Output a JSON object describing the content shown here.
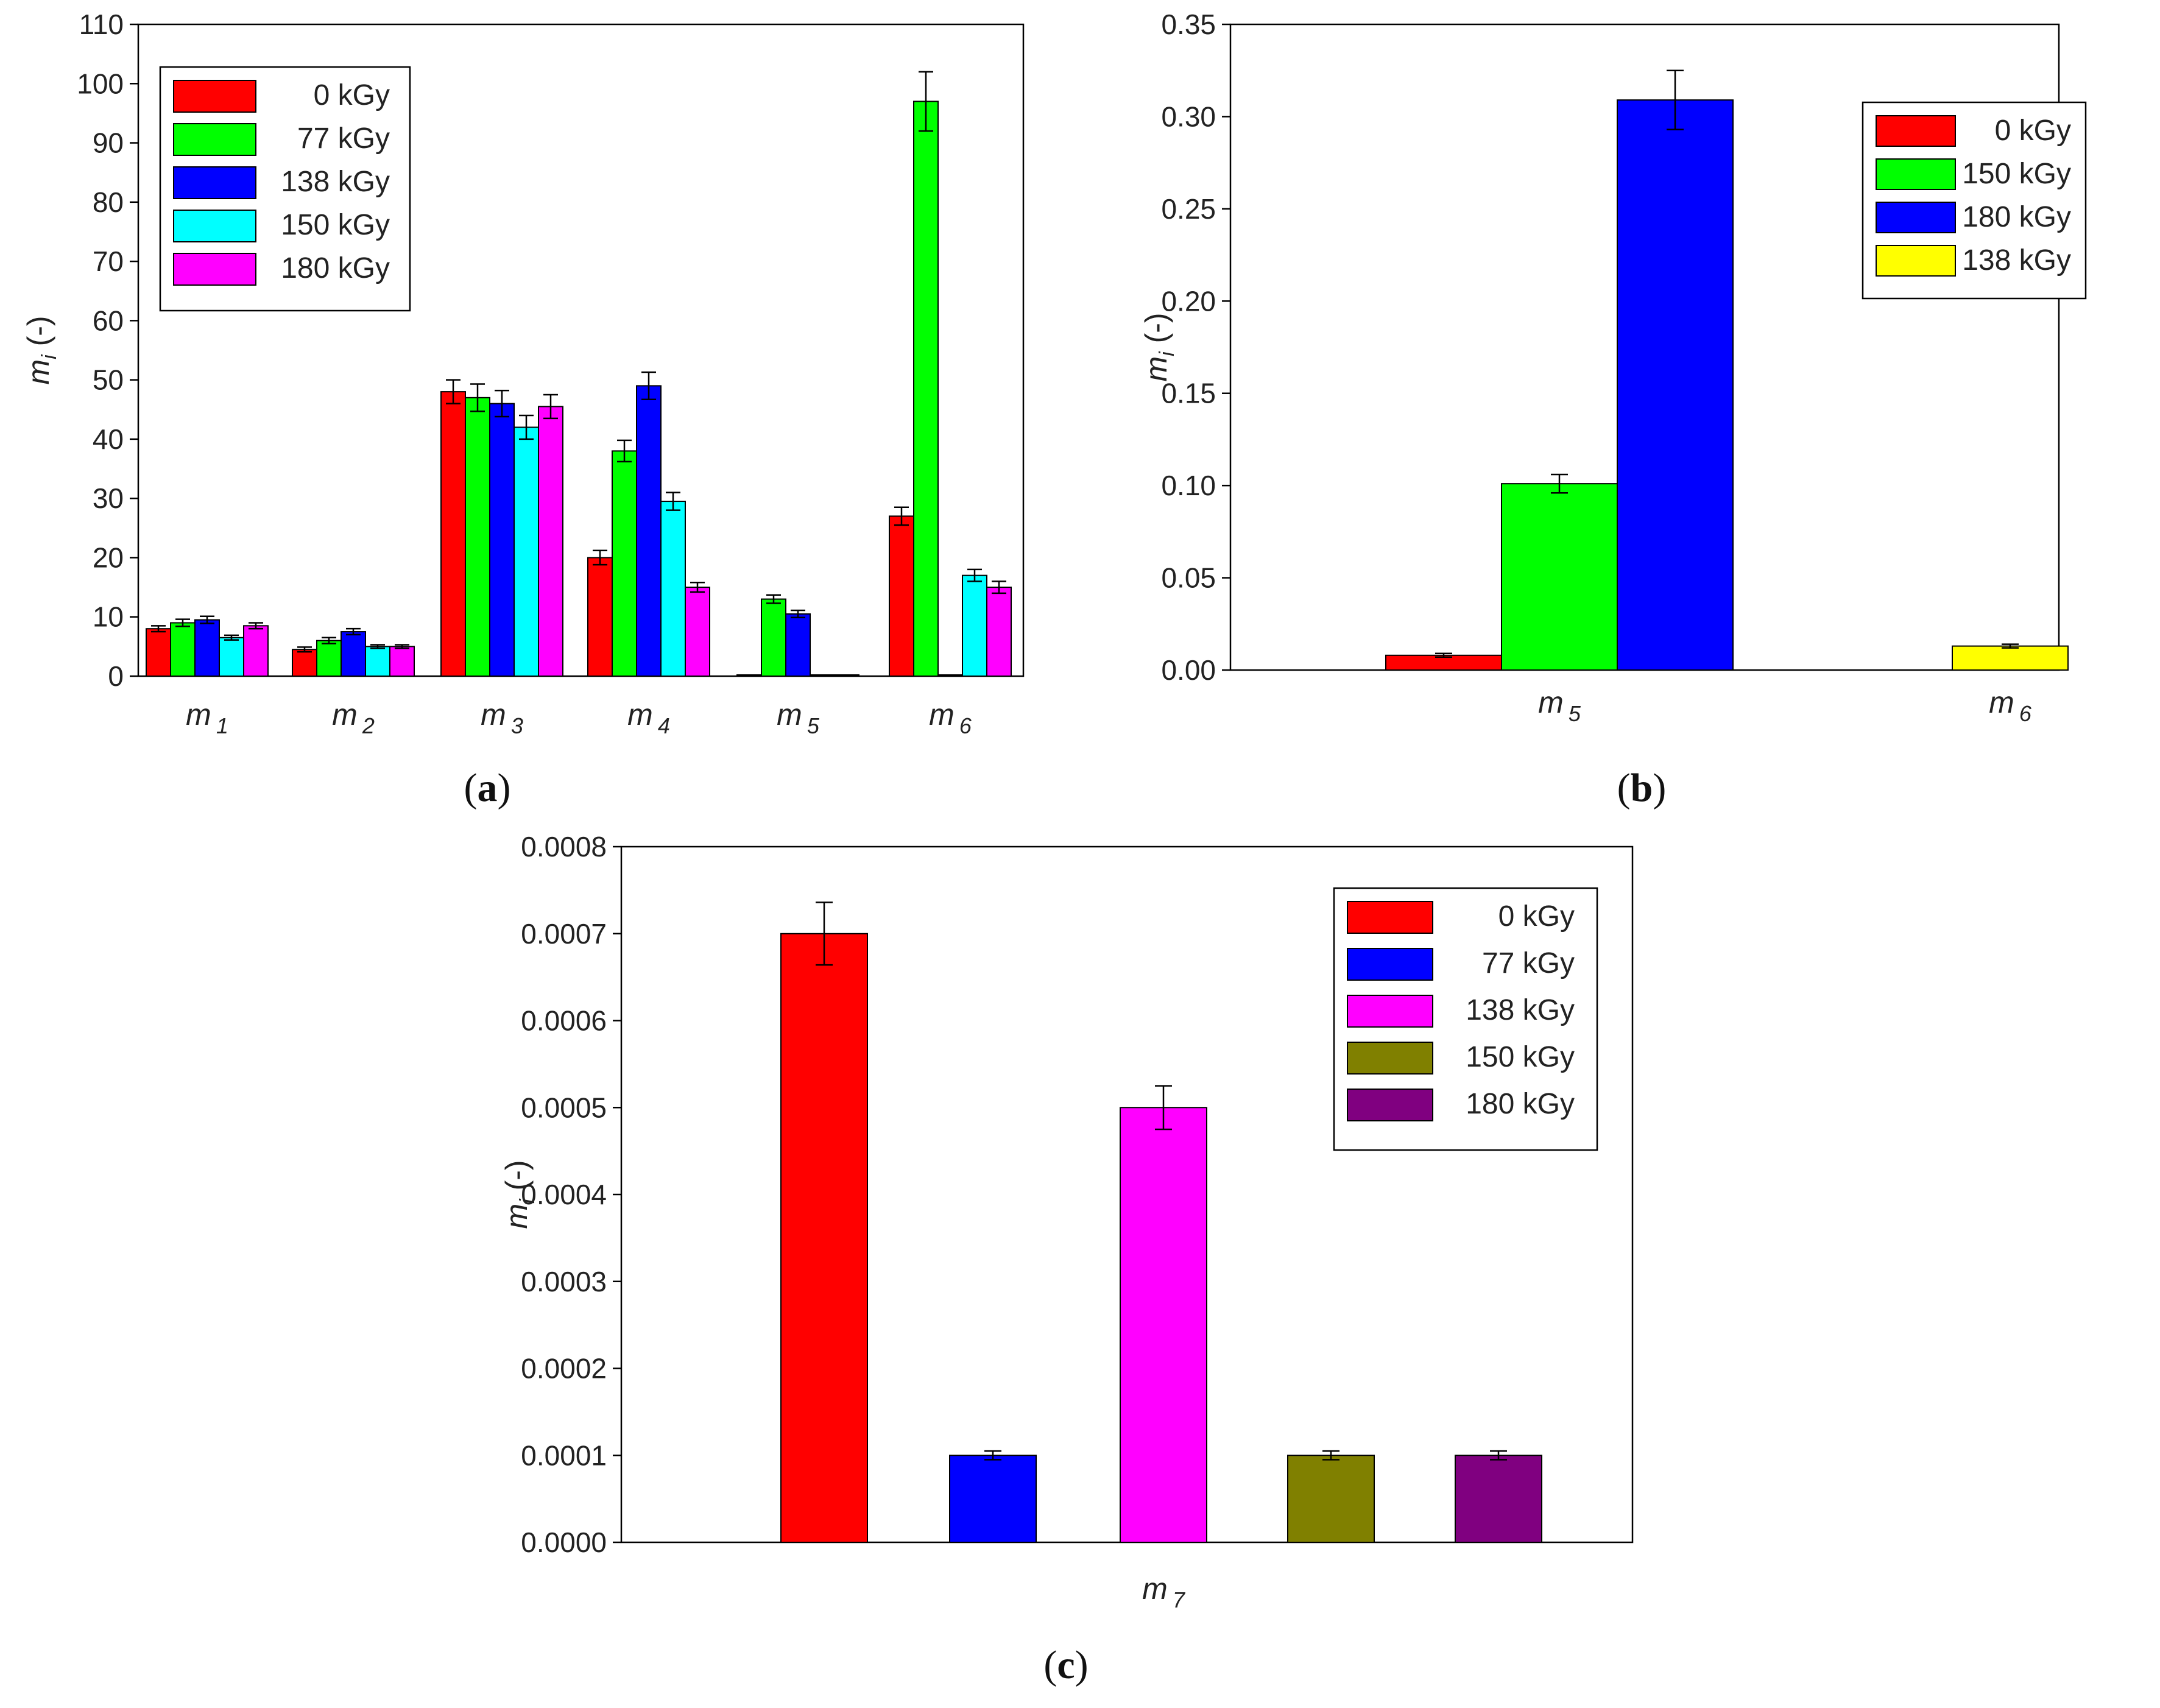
{
  "chart_data": [
    {
      "id": "a",
      "type": "bar",
      "panel_label": "(a)",
      "ylabel": "m_i (-)",
      "ylim": [
        0,
        110
      ],
      "yticks": [
        "0",
        "10",
        "20",
        "30",
        "40",
        "50",
        "60",
        "70",
        "80",
        "90",
        "100",
        "110"
      ],
      "categories": [
        {
          "main": "m",
          "sub": "1"
        },
        {
          "main": "m",
          "sub": "2"
        },
        {
          "main": "m",
          "sub": "3"
        },
        {
          "main": "m",
          "sub": "4"
        },
        {
          "main": "m",
          "sub": "5"
        },
        {
          "main": "m",
          "sub": "6"
        }
      ],
      "legend_position": "top-left",
      "series": [
        {
          "name": "0 kGy",
          "color": "#ff0000",
          "values": [
            8,
            4.5,
            48,
            20,
            0,
            27
          ],
          "errors": [
            0.5,
            0.4,
            2,
            1.2,
            0,
            1.5
          ]
        },
        {
          "name": "77 kGy",
          "color": "#00ff00",
          "values": [
            9,
            6,
            47,
            38,
            13,
            97
          ],
          "errors": [
            0.6,
            0.5,
            2.3,
            1.8,
            0.7,
            5
          ]
        },
        {
          "name": "138 kGy",
          "color": "#0000ff",
          "values": [
            9.5,
            7.5,
            46,
            49,
            10.5,
            0
          ],
          "errors": [
            0.6,
            0.5,
            2.2,
            2.3,
            0.6,
            0
          ]
        },
        {
          "name": "150 kGy",
          "color": "#00ffff",
          "values": [
            6.5,
            5,
            42,
            29.5,
            0.1,
            17
          ],
          "errors": [
            0.4,
            0.3,
            2,
            1.5,
            0,
            1
          ]
        },
        {
          "name": "180 kGy",
          "color": "#ff00ff",
          "values": [
            8.5,
            5,
            45.5,
            15,
            0,
            15
          ],
          "errors": [
            0.5,
            0.3,
            2,
            0.8,
            0,
            1
          ]
        }
      ]
    },
    {
      "id": "b",
      "type": "bar",
      "panel_label": "(b)",
      "ylabel": "m_i (-)",
      "ylim": [
        0,
        0.35
      ],
      "yticks": [
        "0.00",
        "0.05",
        "0.10",
        "0.15",
        "0.20",
        "0.25",
        "0.30",
        "0.35"
      ],
      "categories": [
        {
          "main": "m",
          "sub": "5"
        },
        {
          "main": "m",
          "sub": "6"
        }
      ],
      "legend_position": "top-right",
      "series": [
        {
          "name": "0 kGy",
          "color": "#ff0000",
          "values": [
            0.008,
            null
          ],
          "errors": [
            0.001,
            0
          ]
        },
        {
          "name": "150 kGy",
          "color": "#00ff00",
          "values": [
            0.101,
            null
          ],
          "errors": [
            0.005,
            0
          ]
        },
        {
          "name": "180 kGy",
          "color": "#0000ff",
          "values": [
            0.309,
            null
          ],
          "errors": [
            0.016,
            0
          ]
        },
        {
          "name": "138 kGy",
          "color": "#ffff00",
          "values": [
            null,
            0.013
          ],
          "errors": [
            0,
            0.001
          ]
        }
      ]
    },
    {
      "id": "c",
      "type": "bar",
      "panel_label": "(c)",
      "ylabel": "m_i (-)",
      "ylim": [
        0,
        0.0008
      ],
      "yticks": [
        "0.0000",
        "0.0001",
        "0.0002",
        "0.0003",
        "0.0004",
        "0.0005",
        "0.0006",
        "0.0007",
        "0.0008"
      ],
      "categories": [
        {
          "main": "m",
          "sub": "7"
        }
      ],
      "legend_position": "top-right",
      "series": [
        {
          "name": "0 kGy",
          "color": "#ff0000",
          "values": [
            0.0007
          ],
          "errors": [
            3.6e-05
          ]
        },
        {
          "name": "77 kGy",
          "color": "#0000ff",
          "values": [
            0.0001
          ],
          "errors": [
            5e-06
          ]
        },
        {
          "name": "138 kGy",
          "color": "#ff00ff",
          "values": [
            0.0005
          ],
          "errors": [
            2.5e-05
          ]
        },
        {
          "name": "150 kGy",
          "color": "#808000",
          "values": [
            0.0001
          ],
          "errors": [
            5e-06
          ]
        },
        {
          "name": "180 kGy",
          "color": "#800080",
          "values": [
            0.0001
          ],
          "errors": [
            5e-06
          ]
        }
      ]
    }
  ]
}
